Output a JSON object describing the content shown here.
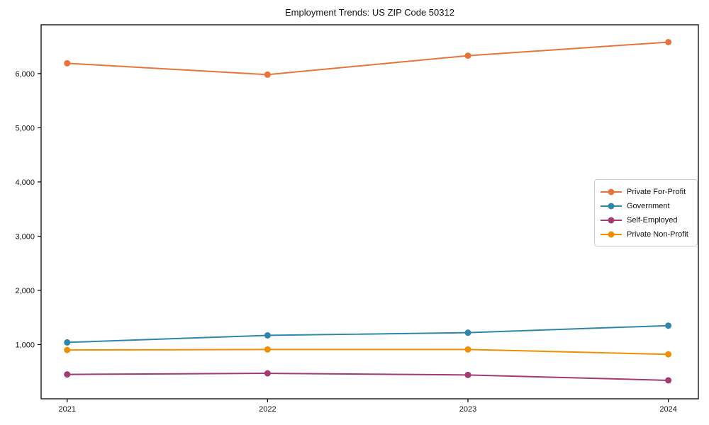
{
  "title": "Employment Trends: US ZIP Code 50312",
  "chart_data": {
    "type": "line",
    "title": "Employment Trends: US ZIP Code 50312",
    "xlabel": "",
    "ylabel": "",
    "x": [
      2021,
      2022,
      2023,
      2024
    ],
    "series": [
      {
        "name": "Private For-Profit",
        "color": "#E8743B",
        "values": [
          6190,
          5980,
          6330,
          6580
        ]
      },
      {
        "name": "Government",
        "color": "#2E86AB",
        "values": [
          1040,
          1170,
          1220,
          1350
        ]
      },
      {
        "name": "Self-Employed",
        "color": "#A23B72",
        "values": [
          450,
          470,
          440,
          340
        ]
      },
      {
        "name": "Private Non-Profit",
        "color": "#F18F01",
        "values": [
          900,
          910,
          910,
          820
        ]
      }
    ],
    "xlim": [
      2020.87,
      2024.15
    ],
    "ylim": [
      0,
      6900
    ],
    "xticks": [
      2021,
      2022,
      2023,
      2024
    ],
    "xtick_labels": [
      "2021",
      "2022",
      "2023",
      "2024"
    ],
    "yticks": [
      1000,
      2000,
      3000,
      4000,
      5000,
      6000
    ],
    "ytick_labels": [
      "1,000",
      "2,000",
      "3,000",
      "4,000",
      "5,000",
      "6,000"
    ],
    "grid": false,
    "legend_position": "center-right",
    "marker": "circle",
    "axis_color": "#000000",
    "background": "#ffffff"
  }
}
